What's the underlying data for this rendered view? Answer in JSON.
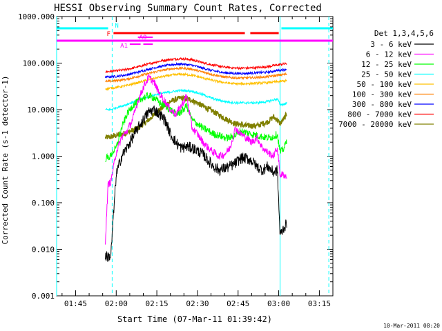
{
  "chart_data": {
    "type": "line",
    "title": "HESSI Observing Summary Count Rates, Corrected",
    "xlabel": "Start Time (07-Mar-11 01:39:42)",
    "ylabel": "Corrected Count Rate (s-1 detector-1)",
    "footer": "10-Mar-2011 08:20",
    "y_scale": "log",
    "ylim": [
      0.001,
      1000
    ],
    "xlim_minutes": [
      98,
      200
    ],
    "x_ticks": [
      {
        "t": 105,
        "label": "01:45"
      },
      {
        "t": 120,
        "label": "02:00"
      },
      {
        "t": 135,
        "label": "02:15"
      },
      {
        "t": 150,
        "label": "02:30"
      },
      {
        "t": 165,
        "label": "02:45"
      },
      {
        "t": 180,
        "label": "03:00"
      },
      {
        "t": 195,
        "label": "03:15"
      }
    ],
    "y_ticks": [
      {
        "v": 0.001,
        "label": "0.001"
      },
      {
        "v": 0.01,
        "label": "0.010"
      },
      {
        "v": 0.1,
        "label": "0.100"
      },
      {
        "v": 1,
        "label": "1.000"
      },
      {
        "v": 10,
        "label": "10.000"
      },
      {
        "v": 100,
        "label": "100.000"
      },
      {
        "v": 1000,
        "label": "1000.000"
      }
    ],
    "legend_title": "Det 1,3,4,5,6",
    "legend_position": "right",
    "series": [
      {
        "name": "3 - 6 keV",
        "color": "#000000",
        "x": [
          116,
          118,
          118.5,
          120,
          122,
          124,
          126,
          128,
          130,
          132,
          134,
          136,
          138,
          140,
          142,
          144,
          146,
          148,
          150,
          152,
          154,
          156,
          158,
          160,
          162,
          164,
          166,
          168,
          170,
          172,
          174,
          176,
          178,
          179.5,
          180.5,
          182,
          183
        ],
        "y": [
          0.007,
          0.007,
          0.02,
          0.4,
          1.0,
          1.5,
          2.5,
          4,
          6,
          9,
          10,
          8,
          6,
          3,
          2,
          1.5,
          1.6,
          1.5,
          1.3,
          1.1,
          0.8,
          0.6,
          0.5,
          0.55,
          0.6,
          0.7,
          0.9,
          0.9,
          0.8,
          0.6,
          0.5,
          0.6,
          0.45,
          0.5,
          0.02,
          0.03,
          0.035
        ]
      },
      {
        "name": "6 - 12 keV",
        "color": "#ff00ff",
        "x": [
          116,
          117,
          118,
          118.5,
          120,
          122,
          124,
          126,
          128,
          130,
          132,
          134,
          136,
          138,
          140,
          142,
          144,
          146,
          148,
          150,
          152,
          154,
          156,
          158,
          160,
          162,
          164,
          166,
          168,
          170,
          172,
          174,
          176,
          178,
          179.5,
          180.5,
          182,
          183
        ],
        "y": [
          0.015,
          0.25,
          0.28,
          0.4,
          1.2,
          2.5,
          3.5,
          6,
          15,
          30,
          50,
          38,
          22,
          15,
          10,
          8,
          12,
          20,
          4,
          3,
          2,
          1.5,
          1.2,
          1.0,
          1.1,
          1.5,
          4,
          3,
          2.5,
          2,
          2.5,
          1.5,
          1.2,
          1.0,
          1.5,
          0.4,
          0.4,
          0.35
        ]
      },
      {
        "name": "12 - 25 keV",
        "color": "#00ff00",
        "x": [
          116,
          118,
          118.5,
          120,
          122,
          124,
          126,
          128,
          130,
          132,
          134,
          136,
          138,
          140,
          142,
          144,
          146,
          148,
          150,
          152,
          154,
          156,
          158,
          160,
          162,
          164,
          166,
          168,
          170,
          172,
          174,
          176,
          178,
          179.5,
          180.5,
          182,
          183
        ],
        "y": [
          0.9,
          1.0,
          1.2,
          1.5,
          4,
          8,
          12,
          15,
          18,
          20,
          18,
          14,
          12,
          10,
          8,
          9,
          12,
          6,
          5,
          4,
          3.5,
          3,
          2.8,
          2.5,
          2.5,
          2.8,
          3.5,
          3.2,
          3,
          2.8,
          2.6,
          2.5,
          2.6,
          3,
          1.2,
          1.5,
          2.2
        ]
      },
      {
        "name": "25 - 50 keV",
        "color": "#00ffff",
        "x": [
          116,
          118,
          120,
          124,
          128,
          132,
          136,
          140,
          144,
          148,
          152,
          156,
          160,
          164,
          168,
          172,
          176,
          179.5,
          180.5,
          182,
          183
        ],
        "y": [
          10,
          10,
          11,
          13,
          16,
          19,
          22,
          24,
          26,
          25,
          21,
          17,
          15,
          14,
          14,
          14,
          15,
          17,
          13,
          13,
          14
        ]
      },
      {
        "name": "50 - 100 keV",
        "color": "#ffc000",
        "x": [
          116,
          120,
          124,
          128,
          132,
          136,
          140,
          144,
          148,
          152,
          156,
          160,
          164,
          168,
          172,
          176,
          180,
          183
        ],
        "y": [
          28,
          30,
          33,
          38,
          44,
          50,
          55,
          58,
          55,
          48,
          42,
          38,
          36,
          36,
          37,
          38,
          40,
          42
        ]
      },
      {
        "name": "100 - 300 keV",
        "color": "#ff7f00",
        "x": [
          116,
          120,
          124,
          128,
          132,
          136,
          140,
          144,
          148,
          152,
          156,
          160,
          164,
          168,
          172,
          176,
          180,
          183
        ],
        "y": [
          40,
          42,
          45,
          52,
          60,
          68,
          75,
          78,
          74,
          64,
          56,
          50,
          48,
          48,
          49,
          51,
          55,
          58
        ]
      },
      {
        "name": "300 - 800 keV",
        "color": "#0000ff",
        "x": [
          116,
          120,
          124,
          128,
          132,
          136,
          140,
          144,
          148,
          152,
          156,
          160,
          164,
          168,
          172,
          176,
          180,
          183
        ],
        "y": [
          50,
          52,
          56,
          64,
          74,
          84,
          92,
          96,
          90,
          78,
          68,
          62,
          60,
          60,
          62,
          64,
          70,
          74
        ]
      },
      {
        "name": "800 - 7000 keV",
        "color": "#ff0000",
        "x": [
          116,
          120,
          124,
          128,
          132,
          136,
          140,
          144,
          148,
          152,
          156,
          160,
          164,
          168,
          172,
          176,
          180,
          183
        ],
        "y": [
          65,
          68,
          73,
          83,
          96,
          110,
          120,
          125,
          118,
          102,
          90,
          82,
          78,
          78,
          80,
          84,
          92,
          98
        ]
      },
      {
        "name": "7000 - 20000 keV",
        "color": "#808000",
        "x": [
          116,
          118,
          120,
          124,
          128,
          132,
          136,
          140,
          144,
          148,
          152,
          156,
          160,
          164,
          168,
          172,
          176,
          178,
          179.5,
          180.5,
          182,
          183
        ],
        "y": [
          2.5,
          2.6,
          2.8,
          3.2,
          4,
          6,
          10,
          15,
          18,
          16,
          12,
          9,
          6.5,
          5,
          4.5,
          4.5,
          5.5,
          7,
          6,
          5,
          6.5,
          8
        ]
      }
    ],
    "annotations": [
      {
        "label": "N",
        "color": "#00ffff",
        "segments": [
          [
            98,
            117
          ],
          [
            181,
            200
          ]
        ],
        "y_pos": 0
      },
      {
        "label": "F",
        "color": "#ff0000",
        "segments": [
          [
            119,
            167.5
          ],
          [
            169.5,
            180
          ]
        ],
        "y_pos": 1
      },
      {
        "label": "AO",
        "color": "#ff00ff",
        "segments": [
          [
            128,
            133.5
          ]
        ],
        "y_pos": 2
      },
      {
        "label": "",
        "color": "#ff00ff",
        "segments": [
          [
            98,
            200
          ]
        ],
        "y_pos": 3
      },
      {
        "label": "A1",
        "color": "#ff00ff",
        "segments": [
          [
            125,
            129
          ],
          [
            130,
            133.5
          ]
        ],
        "y_pos": 4
      }
    ],
    "vlines": [
      {
        "t": 98,
        "color": "#00ffff",
        "style": "solid"
      },
      {
        "t": 118.5,
        "color": "#00ffff",
        "style": "dashed"
      },
      {
        "t": 180.5,
        "color": "#00ffff",
        "style": "solid"
      },
      {
        "t": 198.5,
        "color": "#00ffff",
        "style": "dashed"
      }
    ],
    "grid": false
  }
}
